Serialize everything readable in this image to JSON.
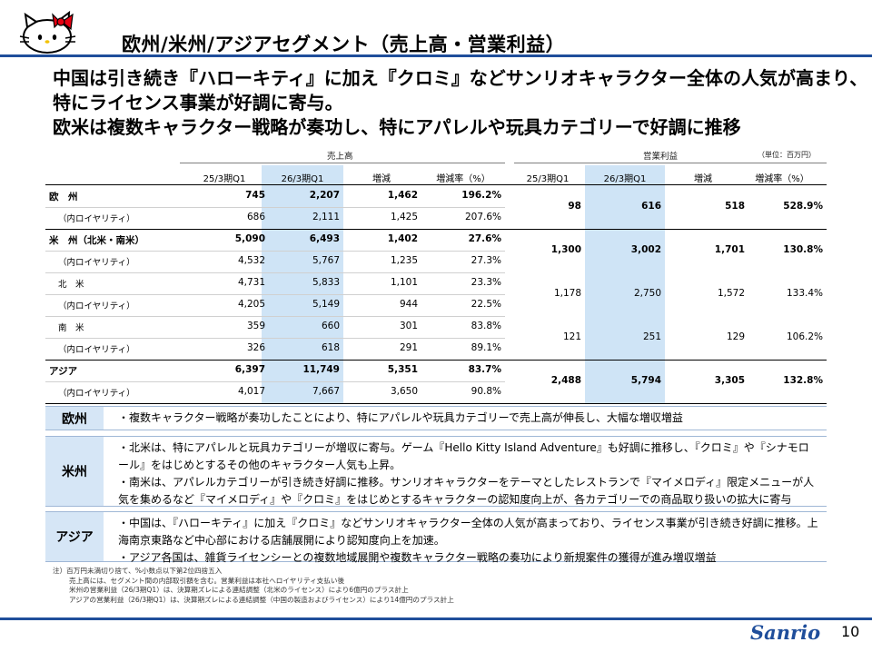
{
  "header": {
    "title": "欧州/米州/アジアセグメント（売上高・営業利益）"
  },
  "headline": [
    "中国は引き続き『ハローキティ』に加え『クロミ』などサンリオキャラクター全体の人気が高まり、",
    "特にライセンス事業が好調に寄与。",
    "欧米は複数キャラクター戦略が奏功し、特にアパレルや玩具カテゴリーで好調に推移"
  ],
  "table": {
    "group_sales": "売上高",
    "group_op": "営業利益",
    "unit": "（単位：百万円）",
    "columns": [
      "25/3期Q1",
      "26/3期Q1",
      "増減",
      "増減率（%）",
      "25/3期Q1",
      "26/3期Q1",
      "増減",
      "増減率（%）"
    ],
    "rows": [
      {
        "label": "欧　州",
        "main": true,
        "values": [
          "745",
          "2,207",
          "1,462",
          "196.2%"
        ]
      },
      {
        "label": "（内ロイヤリティ）",
        "main": false,
        "values": [
          "686",
          "2,111",
          "1,425",
          "207.6%"
        ]
      },
      {
        "label": "米　州（北米・南米）",
        "main": true,
        "values": [
          "5,090",
          "6,493",
          "1,402",
          "27.6%"
        ]
      },
      {
        "label": "（内ロイヤリティ）",
        "main": false,
        "values": [
          "4,532",
          "5,767",
          "1,235",
          "27.3%"
        ]
      },
      {
        "label": "北　米",
        "main": false,
        "values": [
          "4,731",
          "5,833",
          "1,101",
          "23.3%"
        ]
      },
      {
        "label": "（内ロイヤリティ）",
        "main": false,
        "values": [
          "4,205",
          "5,149",
          "944",
          "22.5%"
        ]
      },
      {
        "label": "南　米",
        "main": false,
        "values": [
          "359",
          "660",
          "301",
          "83.8%"
        ]
      },
      {
        "label": "（内ロイヤリティ）",
        "main": false,
        "values": [
          "326",
          "618",
          "291",
          "89.1%"
        ]
      },
      {
        "label": "アジア",
        "main": true,
        "values": [
          "6,397",
          "11,749",
          "5,351",
          "83.7%"
        ]
      },
      {
        "label": "（内ロイヤリティ）",
        "main": false,
        "values": [
          "4,017",
          "7,667",
          "3,650",
          "90.8%"
        ]
      }
    ],
    "op_rows": [
      {
        "values": [
          "98",
          "616",
          "518",
          "528.9%"
        ],
        "main": true
      },
      {
        "values": [
          "1,300",
          "3,002",
          "1,701",
          "130.8%"
        ],
        "main": true
      },
      {
        "values": [
          "1,178",
          "2,750",
          "1,572",
          "133.4%"
        ],
        "main": false
      },
      {
        "values": [
          "121",
          "251",
          "129",
          "106.2%"
        ],
        "main": false
      },
      {
        "values": [
          "2,488",
          "5,794",
          "3,305",
          "132.8%"
        ],
        "main": true
      }
    ]
  },
  "regions": [
    {
      "label": "欧州",
      "text": "・複数キャラクター戦略が奏功したことにより、特にアパレルや玩具カテゴリーで売上高が伸長し、大幅な増収増益"
    },
    {
      "label": "米州",
      "text": "・北米は、特にアパレルと玩具カテゴリーが増収に寄与。ゲーム『Hello Kitty Island Adventure』も好調に推移し、『クロミ』や『シナモロール』をはじめとするその他のキャラクター人気も上昇。\n・南米は、アパレルカテゴリーが引き続き好調に推移。サンリオキャラクターをテーマとしたレストランで『マイメロディ』限定メニューが人気を集めるなど『マイメロディ』や『クロミ』をはじめとするキャラクターの認知度向上が、各カテゴリーでの商品取り扱いの拡大に寄与"
    },
    {
      "label": "アジア",
      "text": "・中国は、『ハローキティ』に加え『クロミ』などサンリオキャラクター全体の人気が高まっており、ライセンス事業が引き続き好調に推移。上海南京東路など中心部における店舗展開により認知度向上を加速。\n・アジア各国は、雑貨ライセンシーとの複数地域展開や複数キャラクター戦略の奏功により新規案件の獲得が進み増収増益"
    }
  ],
  "notes": [
    "注）百万円未満切り捨て、%小数点以下第2位四捨五入",
    "売上高には、セグメント間の内部取引額を含む。営業利益は本社へロイヤリティ支払い後",
    "米州の営業利益（26/3期Q1）は、決算期ズレによる連結調整（北米のライセンス）により6億円のプラス計上",
    "アジアの営業利益（26/3期Q1）は、決算期ズレによる連結調整（中国の製造およびライセンス）により14億円のプラス計上"
  ],
  "footer": {
    "logo": "Sanrio",
    "page": "10"
  }
}
